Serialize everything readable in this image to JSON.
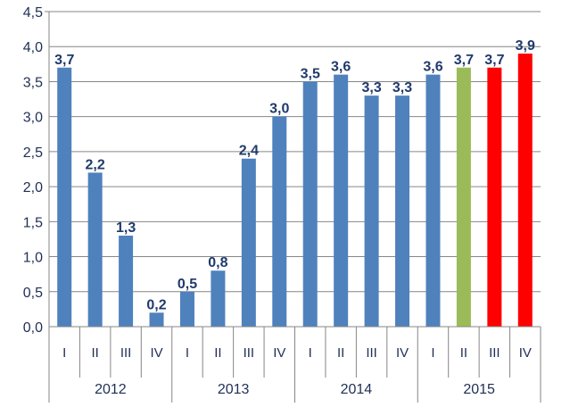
{
  "chart_data": {
    "type": "bar",
    "ylim": [
      0,
      4.5
    ],
    "ytick_step": 0.5,
    "yticks": [
      "0,0",
      "0,5",
      "1,0",
      "1,5",
      "2,0",
      "2,5",
      "3,0",
      "3,5",
      "4,0",
      "4,5"
    ],
    "grid": true,
    "legend": "none",
    "years": [
      "2012",
      "2013",
      "2014",
      "2015"
    ],
    "quarters": [
      "I",
      "II",
      "III",
      "IV",
      "I",
      "II",
      "III",
      "IV",
      "I",
      "II",
      "III",
      "IV",
      "I",
      "II",
      "III",
      "IV"
    ],
    "values": [
      3.7,
      2.2,
      1.3,
      0.2,
      0.5,
      0.8,
      2.4,
      3.0,
      3.5,
      3.6,
      3.3,
      3.3,
      3.6,
      3.7,
      3.7,
      3.9
    ],
    "labels": [
      "3,7",
      "2,2",
      "1,3",
      "0,2",
      "0,5",
      "0,8",
      "2,4",
      "3,0",
      "3,5",
      "3,6",
      "3,3",
      "3,3",
      "3,6",
      "3,7",
      "3,7",
      "3,9"
    ],
    "colors": [
      "#4f81bd",
      "#4f81bd",
      "#4f81bd",
      "#4f81bd",
      "#4f81bd",
      "#4f81bd",
      "#4f81bd",
      "#4f81bd",
      "#4f81bd",
      "#4f81bd",
      "#4f81bd",
      "#4f81bd",
      "#4f81bd",
      "#9bbb59",
      "#ff0000",
      "#ff0000"
    ]
  }
}
